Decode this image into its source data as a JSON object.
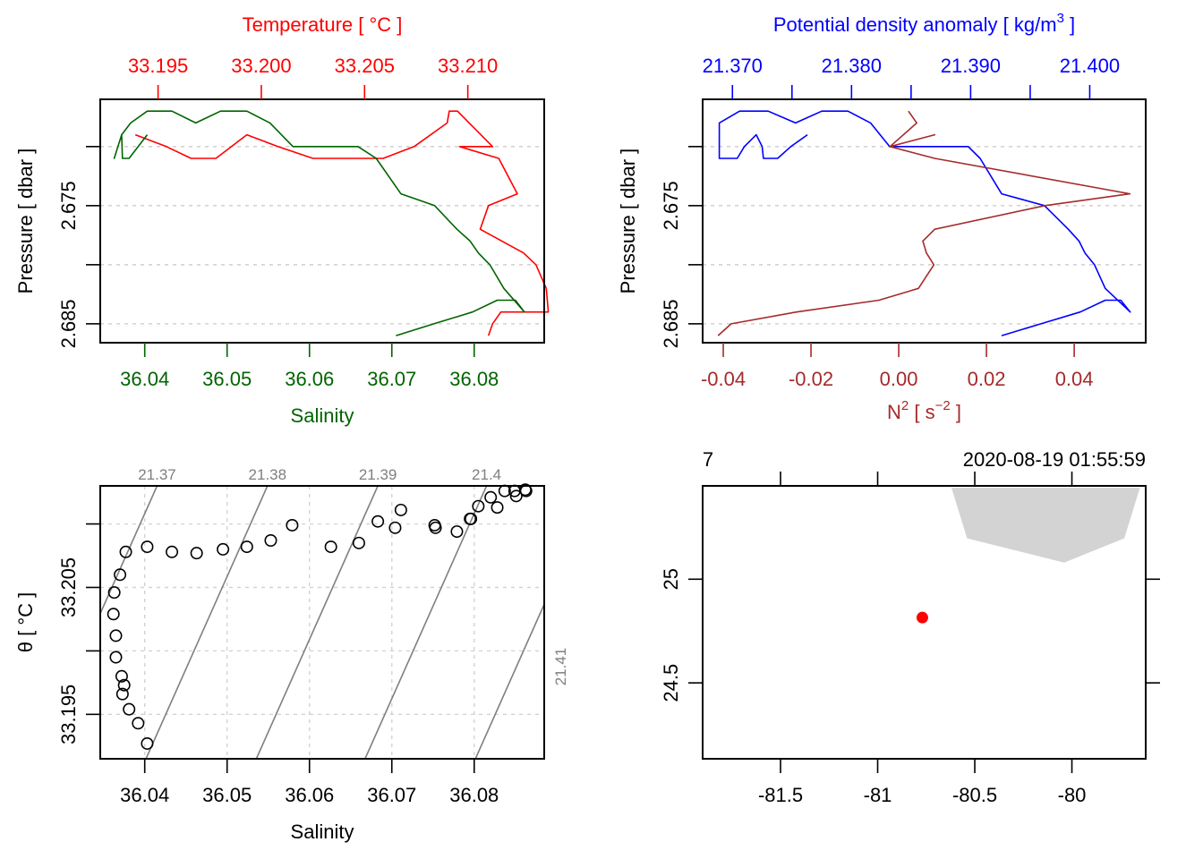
{
  "chart_data": [
    {
      "type": "line",
      "panel": "profile-salinity-temperature",
      "title": "Temperature [ °C ]",
      "xlabel": "Salinity",
      "ylabel": "Pressure [ dbar ]",
      "top_axis": {
        "label": "Temperature [ °C ]",
        "ticks": [
          "33.195",
          "33.200",
          "33.205",
          "33.210"
        ],
        "tick_values": [
          33.195,
          33.2,
          33.205,
          33.21
        ],
        "range": [
          33.1922,
          33.2137
        ],
        "color": "#ff0000"
      },
      "bottom_axis": {
        "label": "Salinity",
        "ticks": [
          "36.04",
          "36.05",
          "36.06",
          "36.07",
          "36.08"
        ],
        "tick_values": [
          36.04,
          36.05,
          36.06,
          36.07,
          36.08
        ],
        "range": [
          36.0346,
          36.0885
        ],
        "color": "#006400"
      },
      "y_axis": {
        "ticks": [
          "",
          "2.675",
          "",
          "2.685"
        ],
        "tick_values": [
          2.67,
          2.675,
          2.68,
          2.685
        ],
        "range": [
          2.666,
          2.6866
        ],
        "reversed": true
      },
      "grid": "horizontal dotted",
      "series": [
        {
          "name": "Salinity",
          "color": "#006400",
          "x": [
            36.0403,
            36.0381,
            36.0373,
            36.0372,
            36.0363,
            36.0372,
            36.0383,
            36.0403,
            36.0433,
            36.0462,
            36.0492,
            36.0524,
            36.0552,
            36.058,
            36.0659,
            36.0681,
            36.0711,
            36.0752,
            36.0779,
            36.0795,
            36.0805,
            36.0819,
            36.0836,
            36.0861,
            36.085,
            36.0828,
            36.0798,
            36.0751,
            36.0705
          ],
          "y": [
            2.669,
            2.671,
            2.671,
            2.669,
            2.671,
            2.669,
            2.668,
            2.667,
            2.667,
            2.668,
            2.667,
            2.667,
            2.668,
            2.67,
            2.67,
            2.671,
            2.674,
            2.675,
            2.677,
            2.678,
            2.679,
            2.68,
            2.682,
            2.684,
            2.683,
            2.683,
            2.684,
            2.685,
            2.686
          ]
        },
        {
          "name": "Temperature",
          "color": "#ff0000",
          "x": [
            33.1939,
            33.1954,
            33.1966,
            33.1978,
            33.1993,
            33.2008,
            33.2025,
            33.2059,
            33.2074,
            33.209,
            33.2091,
            33.2095,
            33.2112,
            33.2096,
            33.2115,
            33.2124,
            33.211,
            33.2106,
            33.2127,
            33.2133,
            33.2138,
            33.2139,
            33.2116,
            33.2112,
            33.211
          ],
          "y": [
            2.669,
            2.67,
            2.671,
            2.671,
            2.669,
            2.67,
            2.671,
            2.671,
            2.67,
            2.668,
            2.667,
            2.667,
            2.67,
            2.67,
            2.671,
            2.674,
            2.675,
            2.677,
            2.679,
            2.68,
            2.682,
            2.684,
            2.684,
            2.685,
            2.686
          ]
        }
      ]
    },
    {
      "type": "line",
      "panel": "profile-density-n2",
      "title": "Potential density anomaly [ kg/m3 ]",
      "xlabel": "N2 [ s-2 ]",
      "ylabel": "Pressure [ dbar ]",
      "top_axis": {
        "label": "Potential density anomaly [ kg/m",
        "label_sup": "3",
        "label_end": " ]",
        "ticks": [
          "21.370",
          "",
          "21.380",
          "",
          "21.390",
          "",
          "21.400"
        ],
        "tick_values": [
          21.37,
          21.375,
          21.38,
          21.385,
          21.39,
          21.395,
          21.4
        ],
        "range": [
          21.3675,
          21.4047
        ],
        "color": "#0000ff"
      },
      "bottom_axis": {
        "label": "N",
        "label_sup": "2",
        "label_mid": " [ s",
        "label_sup2": "−2",
        "label_end": " ]",
        "ticks": [
          "-0.04",
          "-0.02",
          "0.00",
          "0.02",
          "0.04"
        ],
        "tick_values": [
          -0.04,
          -0.02,
          0.0,
          0.02,
          0.04
        ],
        "range": [
          -0.0447,
          0.0563
        ],
        "color": "#a52a2a"
      },
      "y_axis": {
        "ticks": [
          "",
          "2.675",
          "",
          "2.685"
        ],
        "tick_values": [
          2.67,
          2.675,
          2.68,
          2.685
        ],
        "range": [
          2.666,
          2.6866
        ],
        "reversed": true
      },
      "grid": "horizontal dotted",
      "series": [
        {
          "name": "Potential density anomaly",
          "color": "#0000ff",
          "x": [
            21.3763,
            21.3749,
            21.3738,
            21.3726,
            21.3725,
            21.372,
            21.371,
            21.3704,
            21.3689,
            21.3689,
            21.3706,
            21.373,
            21.3753,
            21.3775,
            21.3797,
            21.3816,
            21.3832,
            21.3898,
            21.3908,
            21.3926,
            21.3962,
            21.3982,
            21.3991,
            21.3996,
            21.4004,
            21.4013,
            21.4034,
            21.4026,
            21.4013,
            21.3992,
            21.3959,
            21.3926
          ],
          "y": [
            2.669,
            2.67,
            2.671,
            2.671,
            2.67,
            2.669,
            2.67,
            2.671,
            2.671,
            2.668,
            2.667,
            2.667,
            2.668,
            2.667,
            2.667,
            2.668,
            2.67,
            2.67,
            2.671,
            2.674,
            2.675,
            2.677,
            2.678,
            2.679,
            2.68,
            2.682,
            2.684,
            2.683,
            2.683,
            2.684,
            2.685,
            2.686
          ]
        },
        {
          "name": "N2",
          "color": "#a52a2a",
          "x": [
            0.0022,
            0.0041,
            -0.002,
            0.0082,
            -0.002,
            0.0082,
            0.0527,
            0.0333,
            0.0082,
            0.0055,
            0.0063,
            0.008,
            0.0045,
            -0.0045,
            -0.0233,
            -0.0382,
            -0.0412
          ],
          "y": [
            2.667,
            2.668,
            2.67,
            2.669,
            2.67,
            2.671,
            2.674,
            2.675,
            2.677,
            2.678,
            2.679,
            2.68,
            2.682,
            2.683,
            2.684,
            2.685,
            2.686
          ]
        }
      ]
    },
    {
      "type": "scatter",
      "panel": "ts-diagram",
      "xlabel": "Salinity",
      "ylabel": "θ [ °C ]",
      "x_axis": {
        "ticks": [
          "36.04",
          "36.05",
          "36.06",
          "36.07",
          "36.08"
        ],
        "tick_values": [
          36.04,
          36.05,
          36.06,
          36.07,
          36.08
        ],
        "range": [
          36.0346,
          36.0885
        ]
      },
      "y_axis": {
        "ticks": [
          "",
          "33.205",
          "",
          "33.195"
        ],
        "tick_values": [
          33.21,
          33.205,
          33.2,
          33.195
        ],
        "range": [
          33.1915,
          33.213
        ]
      },
      "grid": "dotted both",
      "points": {
        "x": [
          36.0403,
          36.0392,
          36.0381,
          36.0373,
          36.0375,
          36.0372,
          36.0365,
          36.0365,
          36.0362,
          36.0363,
          36.037,
          36.0377,
          36.0403,
          36.0433,
          36.0463,
          36.0495,
          36.0524,
          36.0553,
          36.0579,
          36.0626,
          36.066,
          36.0683,
          36.0704,
          36.0711,
          36.0752,
          36.0753,
          36.0779,
          36.0795,
          36.0796,
          36.0805,
          36.082,
          36.0828,
          36.0837,
          36.0849,
          36.0851,
          36.0862,
          36.0863
        ],
        "y": [
          33.1927,
          33.1943,
          33.1954,
          33.1966,
          33.1973,
          33.198,
          33.1995,
          33.2012,
          33.2029,
          33.2046,
          33.206,
          33.2078,
          33.2082,
          33.2078,
          33.2077,
          33.208,
          33.2082,
          33.2087,
          33.2099,
          33.2082,
          33.2085,
          33.2102,
          33.2097,
          33.2111,
          33.2099,
          33.2097,
          33.2094,
          33.2104,
          33.2104,
          33.2114,
          33.2121,
          33.2113,
          33.2126,
          33.2126,
          33.2122,
          33.2127,
          33.2126
        ]
      },
      "isopycnals": [
        {
          "label": "21.37",
          "value": 21.37,
          "top_x": 36.0415,
          "slope_sal_per_degC": 0.00686
        },
        {
          "label": "21.38",
          "value": 21.38,
          "top_x": 36.0549,
          "slope_sal_per_degC": 0.00686
        },
        {
          "label": "21.39",
          "value": 21.39,
          "top_x": 36.0683,
          "slope_sal_per_degC": 0.00686
        },
        {
          "label": "21.4",
          "value": 21.4,
          "top_x": 36.0815,
          "slope_sal_per_degC": 0.00686
        },
        {
          "label": "21.41",
          "value": 21.41,
          "top_x": 36.0949,
          "slope_sal_per_degC": 0.00686
        }
      ]
    },
    {
      "type": "scatter",
      "panel": "station-map",
      "x_axis": {
        "ticks": [
          "-81.5",
          "-81",
          "-80.5",
          "-80"
        ],
        "tick_values": [
          -81.5,
          -81,
          -80.5,
          -80
        ],
        "range": [
          -81.901,
          -79.62
        ]
      },
      "y_axis": {
        "ticks": [
          "25",
          "24.5"
        ],
        "tick_values": [
          25,
          24.5
        ],
        "range": [
          24.134,
          25.45
        ]
      },
      "top_left_label": "7",
      "top_right_label": "2020-08-19 01:55:59",
      "station": {
        "lon": -80.77,
        "lat": 24.815,
        "color": "#ff0000"
      },
      "coastline": {
        "color": "#d3d3d3",
        "lon": [
          -80.62,
          -80.54,
          -80.04,
          -79.73,
          -79.65
        ],
        "lat": [
          25.441,
          25.197,
          25.08,
          25.197,
          25.441
        ]
      }
    }
  ]
}
